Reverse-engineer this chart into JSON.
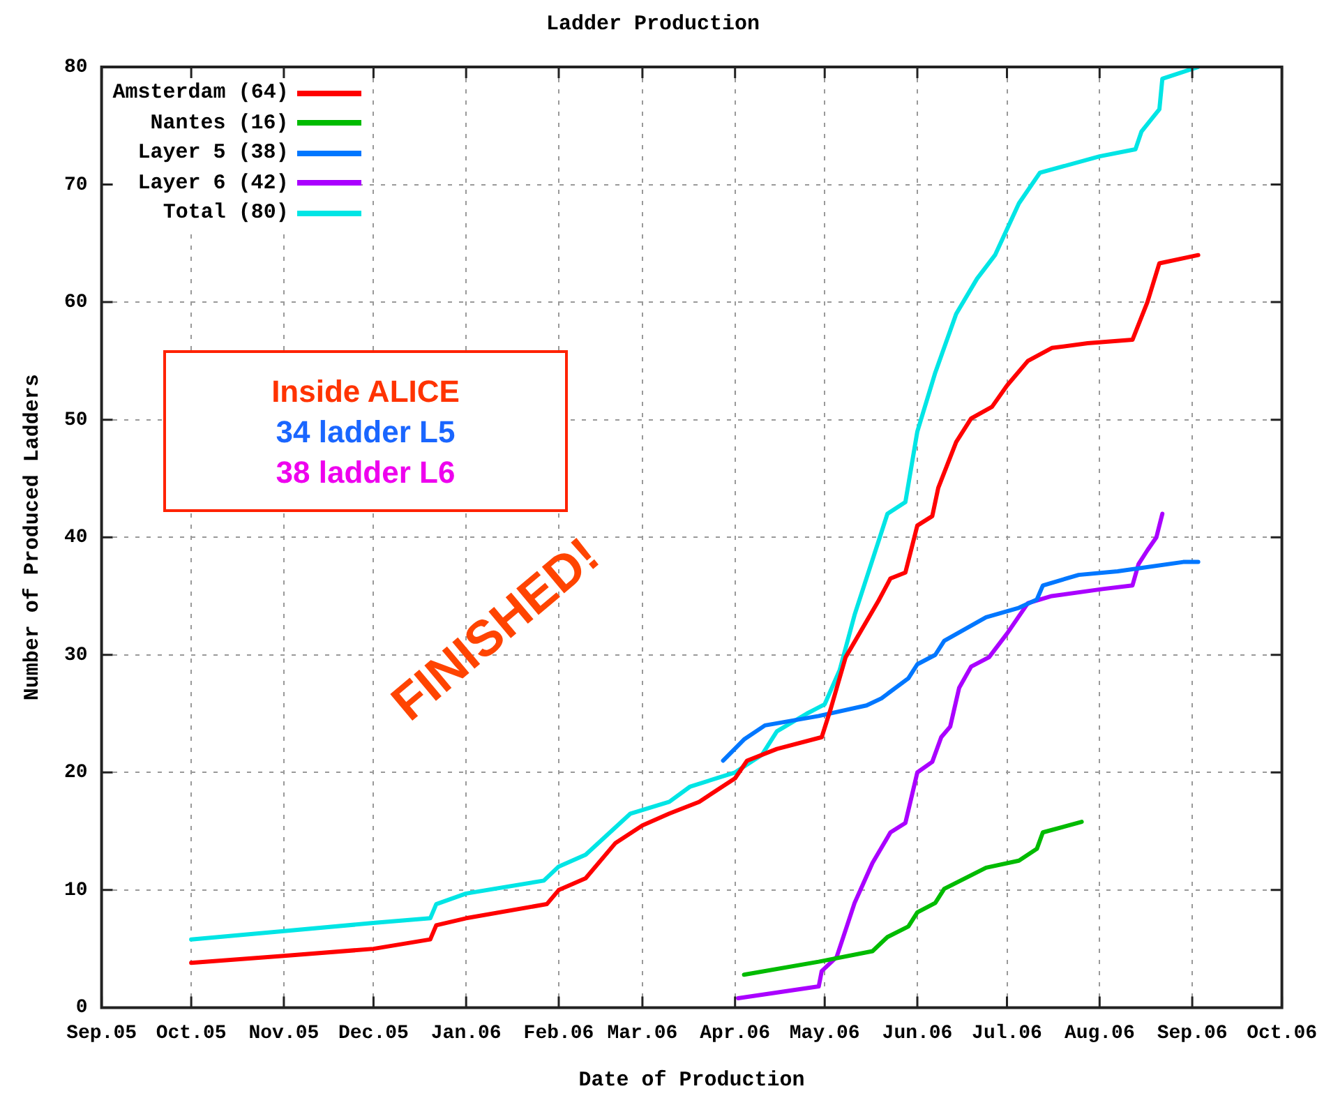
{
  "chart_data": {
    "type": "line",
    "title": "Ladder Production",
    "xlabel": "Date of Production",
    "ylabel": "Number of Produced Ladders",
    "xlim": [
      "2005-09-01",
      "2006-10-01"
    ],
    "xticks": [
      {
        "value": "2005-09-01",
        "label": "Sep.05"
      },
      {
        "value": "2005-10-01",
        "label": "Oct.05"
      },
      {
        "value": "2005-11-01",
        "label": "Nov.05"
      },
      {
        "value": "2005-12-01",
        "label": "Dec.05"
      },
      {
        "value": "2006-01-01",
        "label": "Jan.06"
      },
      {
        "value": "2006-02-01",
        "label": "Feb.06"
      },
      {
        "value": "2006-03-01",
        "label": "Mar.06"
      },
      {
        "value": "2006-04-01",
        "label": "Apr.06"
      },
      {
        "value": "2006-05-01",
        "label": "May.06"
      },
      {
        "value": "2006-06-01",
        "label": "Jun.06"
      },
      {
        "value": "2006-07-01",
        "label": "Jul.06"
      },
      {
        "value": "2006-08-01",
        "label": "Aug.06"
      },
      {
        "value": "2006-09-01",
        "label": "Sep.06"
      },
      {
        "value": "2006-10-01",
        "label": "Oct.06"
      }
    ],
    "ylim": [
      0,
      80
    ],
    "yticks": [
      0,
      10,
      20,
      30,
      40,
      50,
      60,
      70,
      80
    ],
    "grid": true,
    "legend": "top left",
    "marker": "none",
    "line_style": "solid",
    "series": [
      {
        "name": "Amsterdam (64)",
        "color": "#ff0000",
        "x": [
          "2005-10-01",
          "2005-11-01",
          "2005-12-01",
          "2005-12-20",
          "2005-12-22",
          "2006-01-01",
          "2006-01-28",
          "2006-02-01",
          "2006-02-10",
          "2006-02-20",
          "2006-03-01",
          "2006-03-10",
          "2006-03-20",
          "2006-04-01",
          "2006-04-05",
          "2006-04-15",
          "2006-04-30",
          "2006-05-03",
          "2006-05-08",
          "2006-05-19",
          "2006-05-23",
          "2006-05-28",
          "2006-06-01",
          "2006-06-06",
          "2006-06-08",
          "2006-06-14",
          "2006-06-19",
          "2006-06-26",
          "2006-07-01",
          "2006-07-08",
          "2006-07-16",
          "2006-07-28",
          "2006-08-12",
          "2006-08-17",
          "2006-08-21",
          "2006-09-03"
        ],
        "values": [
          3.8,
          4.4,
          5,
          5.8,
          7,
          7.6,
          8.8,
          10,
          11,
          14,
          15.5,
          16.5,
          17.5,
          19.5,
          21,
          22,
          23,
          25.4,
          29.8,
          34.6,
          36.5,
          37,
          41,
          41.8,
          44.2,
          48.1,
          50.1,
          51.1,
          52.9,
          55,
          56.1,
          56.5,
          56.8,
          60,
          63.3,
          64
        ]
      },
      {
        "name": "Nantes (16)",
        "color": "#00bb00",
        "x": [
          "2006-04-04",
          "2006-04-29",
          "2006-05-17",
          "2006-05-22",
          "2006-05-29",
          "2006-06-01",
          "2006-06-07",
          "2006-06-10",
          "2006-06-24",
          "2006-07-05",
          "2006-07-11",
          "2006-07-13",
          "2006-07-26"
        ],
        "values": [
          2.8,
          3.9,
          4.8,
          6,
          6.9,
          8.1,
          8.9,
          10.1,
          11.9,
          12.5,
          13.5,
          14.9,
          15.8
        ]
      },
      {
        "name": "Layer 5 (38)",
        "color": "#0077ff",
        "x": [
          "2006-03-28",
          "2006-04-04",
          "2006-04-11",
          "2006-04-29",
          "2006-05-15",
          "2006-05-20",
          "2006-05-29",
          "2006-06-01",
          "2006-06-07",
          "2006-06-10",
          "2006-06-24",
          "2006-07-05",
          "2006-07-11",
          "2006-07-13",
          "2006-07-25",
          "2006-08-07",
          "2006-08-29",
          "2006-09-03"
        ],
        "values": [
          21,
          22.8,
          24,
          24.8,
          25.7,
          26.3,
          28,
          29.2,
          30,
          31.2,
          33.2,
          34,
          34.7,
          35.9,
          36.8,
          37.1,
          37.9,
          37.9
        ]
      },
      {
        "name": "Layer 6 (42)",
        "color": "#aa00ff",
        "x": [
          "2006-04-02",
          "2006-04-29",
          "2006-04-30",
          "2006-05-05",
          "2006-05-11",
          "2006-05-17",
          "2006-05-23",
          "2006-05-28",
          "2006-06-01",
          "2006-06-06",
          "2006-06-09",
          "2006-06-12",
          "2006-06-15",
          "2006-06-19",
          "2006-06-25",
          "2006-07-01",
          "2006-07-08",
          "2006-07-16",
          "2006-08-02",
          "2006-08-12",
          "2006-08-14",
          "2006-08-17",
          "2006-08-20",
          "2006-08-22"
        ],
        "values": [
          0.8,
          1.8,
          3.1,
          4.3,
          8.9,
          12.3,
          14.9,
          15.7,
          20,
          20.9,
          23,
          23.9,
          27.2,
          29,
          29.8,
          31.8,
          34.4,
          35,
          35.6,
          35.9,
          37.7,
          38.9,
          40,
          42
        ]
      },
      {
        "name": "Total (80)",
        "color": "#00e5e5",
        "x": [
          "2005-10-01",
          "2005-11-01",
          "2005-12-01",
          "2005-12-20",
          "2005-12-22",
          "2006-01-01",
          "2006-01-27",
          "2006-02-01",
          "2006-02-10",
          "2006-02-25",
          "2006-03-10",
          "2006-03-17",
          "2006-04-01",
          "2006-04-10",
          "2006-04-15",
          "2006-04-25",
          "2006-05-01",
          "2006-05-06",
          "2006-05-11",
          "2006-05-22",
          "2006-05-28",
          "2006-06-01",
          "2006-06-07",
          "2006-06-14",
          "2006-06-21",
          "2006-06-27",
          "2006-07-05",
          "2006-07-12",
          "2006-08-01",
          "2006-08-13",
          "2006-08-15",
          "2006-08-21",
          "2006-08-22",
          "2006-09-03"
        ],
        "values": [
          5.8,
          6.5,
          7.2,
          7.6,
          8.8,
          9.7,
          10.8,
          12,
          13,
          16.5,
          17.5,
          18.8,
          20,
          21.5,
          23.5,
          25,
          25.8,
          28.7,
          33.4,
          42,
          43,
          49,
          54,
          59,
          62,
          64,
          68.4,
          71,
          72.4,
          73,
          74.5,
          76.4,
          79,
          80
        ]
      }
    ],
    "annotations": [
      "Inside ALICE",
      "34 ladder L5",
      "38 ladder L6",
      "FINISHED!"
    ]
  }
}
